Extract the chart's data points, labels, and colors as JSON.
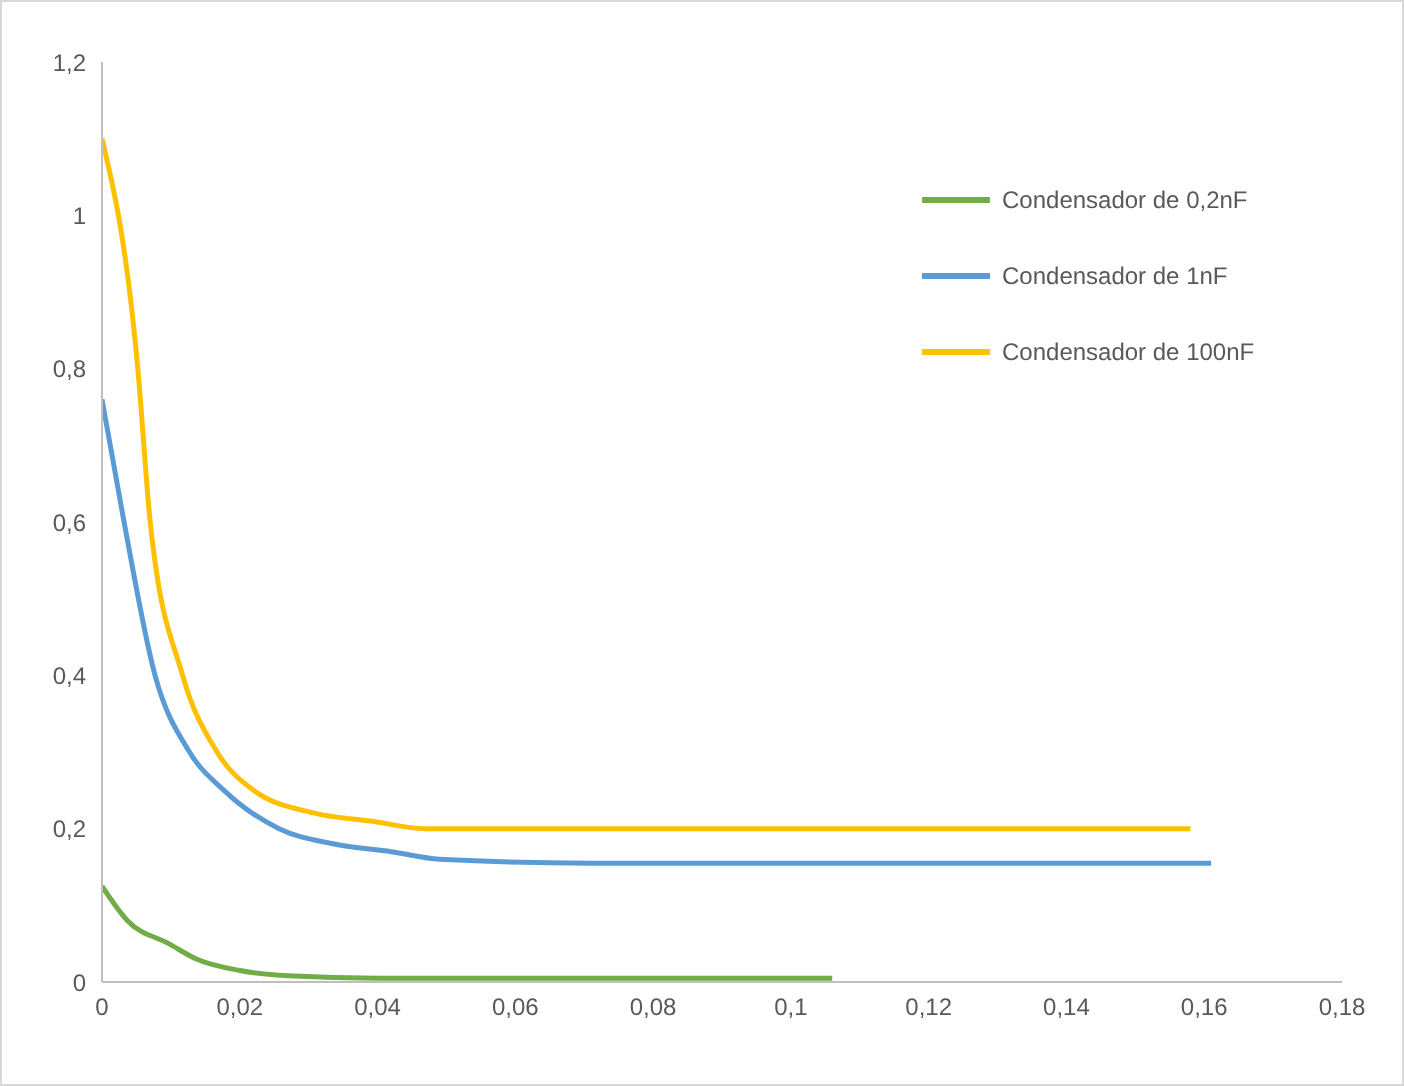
{
  "chart_data": {
    "type": "line",
    "xlim": [
      0,
      0.18
    ],
    "xticks": [
      {
        "value": 0,
        "label": "0"
      },
      {
        "value": 0.02,
        "label": "0,02"
      },
      {
        "value": 0.04,
        "label": "0,04"
      },
      {
        "value": 0.06,
        "label": "0,06"
      },
      {
        "value": 0.08,
        "label": "0,08"
      },
      {
        "value": 0.1,
        "label": "0,1"
      },
      {
        "value": 0.12,
        "label": "0,12"
      },
      {
        "value": 0.14,
        "label": "0,14"
      },
      {
        "value": 0.16,
        "label": "0,16"
      },
      {
        "value": 0.18,
        "label": "0,18"
      }
    ],
    "ylim": [
      0,
      1.2
    ],
    "yticks": [
      {
        "value": 0,
        "label": "0"
      },
      {
        "value": 0.2,
        "label": "0,2"
      },
      {
        "value": 0.4,
        "label": "0,4"
      },
      {
        "value": 0.6,
        "label": "0,6"
      },
      {
        "value": 0.8,
        "label": "0,8"
      },
      {
        "value": 1,
        "label": "1"
      },
      {
        "value": 1.2,
        "label": "1,2"
      }
    ],
    "grid": false,
    "legend": "top right",
    "marker": "none",
    "line_style": "solid",
    "series": [
      {
        "name": "Condensador de 0,2nF",
        "color": "#70ad47",
        "x": [
          0,
          0.0037,
          0.0097,
          0.0137,
          0.02,
          0.027,
          0.04,
          0.06,
          0.08,
          0.106
        ],
        "values": [
          0.125,
          0.08,
          0.05,
          0.03,
          0.015,
          0.008,
          0.005,
          0.005,
          0.005,
          0.005
        ]
      },
      {
        "name": "Condensador de 1nF",
        "color": "#5b9bd5",
        "x": [
          0,
          0.0032,
          0.0077,
          0.0127,
          0.0177,
          0.0257,
          0.0337,
          0.042,
          0.049,
          0.071,
          0.1,
          0.13,
          0.161
        ],
        "values": [
          0.76,
          0.6,
          0.4,
          0.3,
          0.25,
          0.2,
          0.18,
          0.17,
          0.16,
          0.155,
          0.155,
          0.155,
          0.155
        ]
      },
      {
        "name": "Condensador de 100nF",
        "color": "#ffc000",
        "x": [
          0,
          0.0052,
          0.007,
          0.0117,
          0.0167,
          0.022,
          0.031,
          0.039,
          0.047,
          0.07,
          0.1,
          0.13,
          0.158
        ],
        "values": [
          1.1,
          0.8,
          0.6,
          0.4,
          0.3,
          0.25,
          0.22,
          0.21,
          0.2,
          0.2,
          0.2,
          0.2,
          0.2
        ]
      }
    ]
  }
}
